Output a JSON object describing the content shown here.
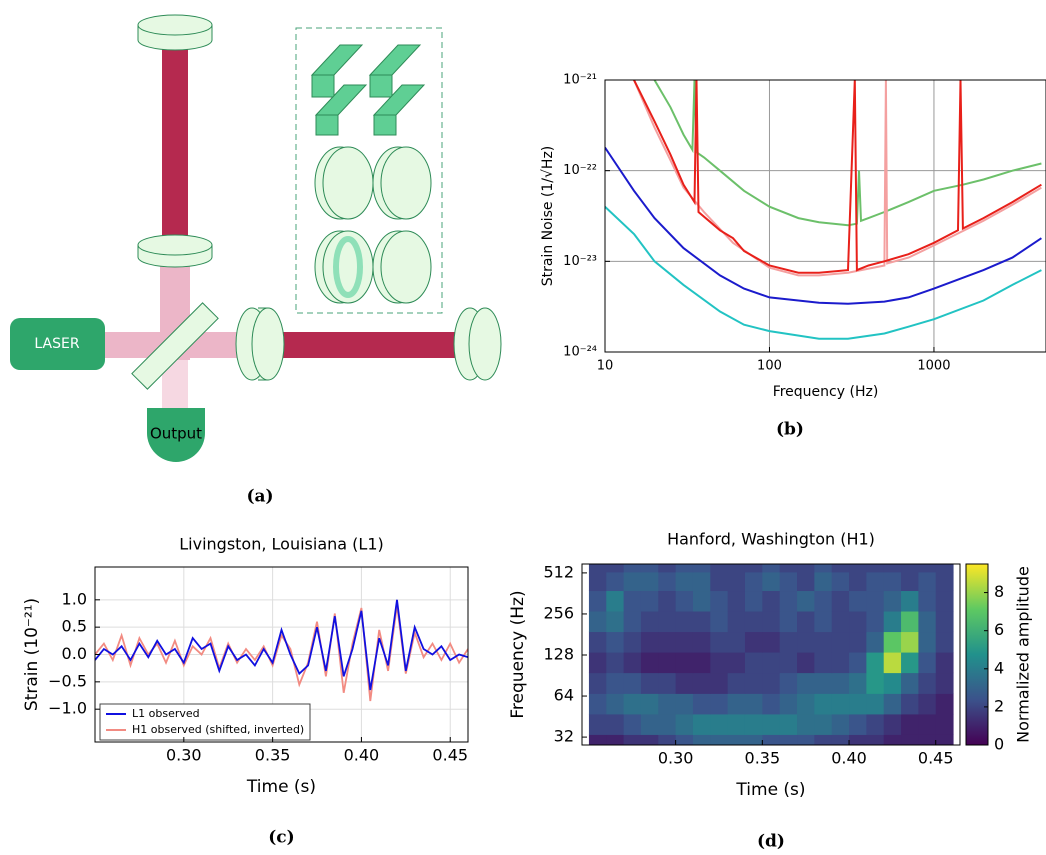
{
  "diagram": {
    "laser": "LASER",
    "output": "Output",
    "caption": "(a)"
  },
  "chart_data": [
    {
      "type": "line",
      "caption": "(b)",
      "xlabel": "Frequency (Hz)",
      "ylabel": "Strain Noise (1/√Hz)",
      "xscale": "log",
      "yscale": "log",
      "xlim": [
        10,
        4800
      ],
      "ylim": [
        1e-24,
        1e-21
      ],
      "xticks": [
        10,
        100,
        1000
      ],
      "yticks": [
        {
          "value": 1e-24,
          "label": "10⁻²⁴"
        },
        {
          "value": 1e-23,
          "label": "10⁻²³"
        },
        {
          "value": 1e-22,
          "label": "10⁻²²"
        },
        {
          "value": 1e-21,
          "label": "10⁻²¹"
        }
      ],
      "grid": true,
      "series": [
        {
          "color": "#6cc06a",
          "x": [
            20,
            25,
            30,
            34,
            35,
            36,
            40,
            50,
            70,
            100,
            150,
            200,
            300,
            340,
            350,
            360,
            400,
            500,
            700,
            1000,
            1500,
            2000,
            3000,
            4500
          ],
          "values": [
            1e-21,
            5e-22,
            2.5e-22,
            1.7e-22,
            1e-21,
            1.6e-22,
            1.4e-22,
            1e-22,
            6e-23,
            4e-23,
            3e-23,
            2.7e-23,
            2.5e-23,
            2.6e-23,
            1e-22,
            2.8e-23,
            3e-23,
            3.5e-23,
            4.5e-23,
            6e-23,
            7e-23,
            8e-23,
            1e-22,
            1.2e-22
          ]
        },
        {
          "color": "#f4a0a0",
          "x": [
            15,
            20,
            25,
            30,
            40,
            60,
            100,
            150,
            200,
            300,
            500,
            510,
            520,
            700,
            1000,
            2000,
            3000,
            4500
          ],
          "values": [
            1e-21,
            3e-22,
            1.3e-22,
            6.5e-23,
            3.5e-23,
            1.6e-23,
            8.5e-24,
            7e-24,
            7e-24,
            7.5e-24,
            9e-24,
            1e-21,
            9.5e-24,
            1.1e-23,
            1.5e-23,
            2.8e-23,
            4.2e-23,
            6.5e-23
          ]
        },
        {
          "color": "#e8201a",
          "x": [
            15,
            20,
            25,
            30,
            35,
            36,
            37,
            50,
            60,
            70,
            100,
            150,
            200,
            300,
            330,
            340,
            400,
            500,
            700,
            1000,
            1400,
            1450,
            1500,
            2000,
            3000,
            4500
          ],
          "values": [
            1e-21,
            3.5e-22,
            1.5e-22,
            7e-23,
            4.5e-23,
            1e-21,
            3.5e-23,
            2.2e-23,
            1.8e-23,
            1.3e-23,
            9e-24,
            7.5e-24,
            7.5e-24,
            8e-24,
            1e-21,
            8e-24,
            9e-24,
            1e-23,
            1.2e-23,
            1.6e-23,
            2.2e-23,
            1e-21,
            2.3e-23,
            3e-23,
            4.5e-23,
            7e-23
          ]
        },
        {
          "color": "#1b1bcc",
          "x": [
            10,
            15,
            20,
            30,
            50,
            70,
            100,
            200,
            300,
            500,
            700,
            1000,
            2000,
            3000,
            4500
          ],
          "values": [
            1.8e-22,
            6e-23,
            3e-23,
            1.4e-23,
            7e-24,
            5e-24,
            4e-24,
            3.5e-24,
            3.4e-24,
            3.6e-24,
            4e-24,
            5e-24,
            8e-24,
            1.1e-23,
            1.8e-23
          ]
        },
        {
          "color": "#22c3c3",
          "x": [
            10,
            15,
            20,
            30,
            50,
            70,
            100,
            200,
            300,
            500,
            700,
            1000,
            2000,
            3000,
            4500
          ],
          "values": [
            4e-23,
            2e-23,
            1e-23,
            5.5e-24,
            2.8e-24,
            2e-24,
            1.7e-24,
            1.4e-24,
            1.4e-24,
            1.6e-24,
            1.9e-24,
            2.3e-24,
            3.7e-24,
            5.5e-24,
            8e-24
          ]
        }
      ]
    },
    {
      "type": "line",
      "title": "Livingston, Louisiana (L1)",
      "caption": "(c)",
      "xlabel": "Time (s)",
      "ylabel": "Strain (10⁻²¹)",
      "xlim": [
        0.25,
        0.46
      ],
      "ylim": [
        -1.6,
        1.6
      ],
      "xticks": [
        {
          "value": 0.3,
          "label": "0.30"
        },
        0.35,
        {
          "value": 0.4,
          "label": "0.40"
        },
        0.45
      ],
      "yticks": [
        {
          "value": -1,
          "label": "−1.0"
        },
        {
          "value": -0.5,
          "label": "−0.5"
        },
        {
          "value": 0,
          "label": "0.0"
        },
        {
          "value": 0.5,
          "label": "0.5"
        },
        {
          "value": 1,
          "label": "1.0"
        }
      ],
      "grid": true,
      "legend": "lower left",
      "x": [
        0.25,
        0.255,
        0.26,
        0.265,
        0.27,
        0.275,
        0.28,
        0.285,
        0.29,
        0.295,
        0.3,
        0.305,
        0.31,
        0.315,
        0.32,
        0.325,
        0.33,
        0.335,
        0.34,
        0.345,
        0.35,
        0.355,
        0.36,
        0.365,
        0.37,
        0.375,
        0.38,
        0.385,
        0.39,
        0.395,
        0.4,
        0.405,
        0.41,
        0.415,
        0.42,
        0.425,
        0.43,
        0.435,
        0.44,
        0.445,
        0.45,
        0.455,
        0.46
      ],
      "series": [
        {
          "name": "H1 observed (shifted, inverted)",
          "color": "#f28b82",
          "values": [
            0.0,
            0.2,
            -0.1,
            0.35,
            -0.2,
            0.3,
            0.0,
            0.2,
            -0.15,
            0.25,
            -0.2,
            0.15,
            0.0,
            0.3,
            -0.25,
            0.2,
            -0.15,
            0.1,
            -0.1,
            0.15,
            -0.2,
            0.35,
            0.1,
            -0.55,
            -0.15,
            0.6,
            -0.4,
            0.75,
            -0.7,
            0.2,
            0.85,
            -0.85,
            0.45,
            -0.3,
            0.9,
            -0.35,
            0.4,
            -0.05,
            0.2,
            -0.1,
            0.2,
            -0.15,
            0.1
          ]
        },
        {
          "name": "L1 observed",
          "color": "#1010e0",
          "values": [
            -0.1,
            0.1,
            0.0,
            0.15,
            -0.1,
            0.2,
            -0.05,
            0.25,
            0.0,
            0.1,
            -0.15,
            0.3,
            0.1,
            0.2,
            -0.3,
            0.15,
            -0.1,
            0.0,
            -0.2,
            0.1,
            -0.15,
            0.45,
            0.0,
            -0.35,
            -0.2,
            0.5,
            -0.3,
            0.7,
            -0.4,
            0.1,
            0.8,
            -0.65,
            0.3,
            -0.2,
            1.0,
            -0.3,
            0.5,
            0.1,
            0.0,
            0.15,
            -0.1,
            0.0,
            -0.05
          ]
        }
      ]
    },
    {
      "type": "heatmap",
      "title": "Hanford, Washington (H1)",
      "caption": "(d)",
      "xlabel": "Time (s)",
      "ylabel": "Frequency (Hz)",
      "colorbar_label": "Normalized amplitude",
      "yscale": "log",
      "xlim": [
        0.246,
        0.464
      ],
      "ylim": [
        28,
        595
      ],
      "clim": [
        0,
        9.5
      ],
      "xticks": [
        {
          "value": 0.3,
          "label": "0.30"
        },
        0.35,
        {
          "value": 0.4,
          "label": "0.40"
        },
        0.45
      ],
      "yticks": [
        32,
        64,
        128,
        256,
        512
      ],
      "cticks": [
        0,
        2,
        4,
        6,
        8
      ],
      "x": [
        0.255,
        0.265,
        0.275,
        0.285,
        0.295,
        0.305,
        0.315,
        0.325,
        0.335,
        0.345,
        0.355,
        0.365,
        0.375,
        0.385,
        0.395,
        0.405,
        0.415,
        0.425,
        0.435,
        0.445,
        0.455
      ],
      "y": [
        28,
        40,
        56,
        80,
        113,
        160,
        226,
        320,
        452,
        600
      ],
      "z": [
        [
          1,
          1,
          1.5,
          1.5,
          2,
          2.5,
          3,
          3,
          3,
          3,
          2.5,
          2.5,
          2.5,
          2,
          2,
          1.5,
          1.5,
          1,
          1,
          1,
          1
        ],
        [
          2,
          2,
          2.5,
          3,
          3,
          3.5,
          4,
          4,
          4,
          4,
          4,
          4,
          3.5,
          3.5,
          3,
          2.5,
          2,
          1.5,
          1,
          1,
          1
        ],
        [
          2.5,
          3,
          3.5,
          3.5,
          3,
          3,
          2.5,
          2.5,
          3,
          3,
          2.5,
          3,
          3.5,
          4,
          4,
          4,
          4,
          3,
          2,
          1.5,
          1
        ],
        [
          2,
          2.5,
          2.5,
          2,
          2,
          1.5,
          1.5,
          1.5,
          2,
          2,
          2,
          2.5,
          3,
          3,
          3,
          3.5,
          5,
          4.5,
          3,
          2,
          1.5
        ],
        [
          1.5,
          2,
          1.5,
          1,
          1,
          1,
          1,
          1.5,
          1.5,
          2,
          2,
          2,
          1.5,
          2,
          2,
          2.5,
          5,
          8.5,
          5,
          2.5,
          1.5
        ],
        [
          2,
          2.5,
          2,
          1.5,
          1.5,
          1.5,
          1.5,
          2,
          2,
          1.5,
          1.5,
          2,
          2,
          2,
          2,
          2,
          3,
          7,
          8,
          3,
          2
        ],
        [
          3,
          3.5,
          2.5,
          2,
          2,
          2,
          2,
          2.5,
          2,
          2,
          2,
          2.5,
          2,
          2.5,
          2,
          2,
          2.5,
          4,
          6.5,
          3,
          2
        ],
        [
          2.5,
          4,
          2.5,
          2.5,
          2,
          2.5,
          3,
          2.5,
          2,
          2.5,
          2,
          2.5,
          3,
          2.5,
          2,
          2.5,
          2.5,
          3,
          4,
          2.5,
          2
        ],
        [
          2,
          2.5,
          3,
          3,
          2.5,
          3,
          3,
          2,
          2,
          2.5,
          3,
          2.5,
          2,
          3,
          2.5,
          2,
          2.5,
          2.5,
          2,
          2.5,
          2
        ],
        [
          2,
          2,
          2.5,
          2.5,
          2,
          2.5,
          2.5,
          2,
          2,
          2,
          2.5,
          2,
          2,
          2.5,
          2,
          2,
          2,
          2,
          2,
          2,
          2
        ]
      ]
    }
  ]
}
